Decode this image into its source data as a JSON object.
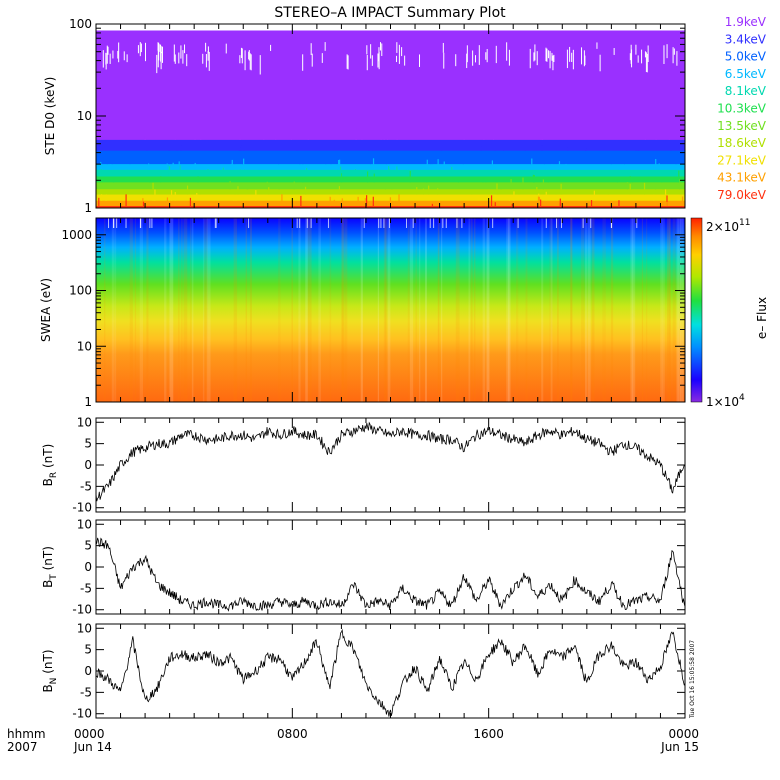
{
  "title": "STEREO–A IMPACT Summary Plot",
  "colors": {
    "axis": "#000000",
    "trace": "#000000",
    "ste_1_9": "#9a30ff",
    "ste_3_4": "#3030ff",
    "ste_5_0": "#0060ff",
    "ste_6_5": "#00b8ff",
    "ste_8_1": "#00d8b0",
    "ste_10_3": "#20e050",
    "ste_13_5": "#70e020",
    "ste_18_6": "#b0e000",
    "ste_27_1": "#f0e000",
    "ste_43_1": "#ffa000",
    "ste_79_0": "#ff3010"
  },
  "chart_data": [
    {
      "type": "line",
      "panel": "ste",
      "ylabel": "STE D0 (keV)",
      "yscale": "log",
      "ylim": [
        1,
        100
      ],
      "yticks": [
        "1",
        "10",
        "100"
      ],
      "legend_placement": "right",
      "series": [
        {
          "name": "1.9keV",
          "color": "#9a30ff",
          "level": 85
        },
        {
          "name": "3.4keV",
          "color": "#3030ff",
          "level": 5.5
        },
        {
          "name": "5.0keV",
          "color": "#0060ff",
          "level": 4.2
        },
        {
          "name": "6.5keV",
          "color": "#00b8ff",
          "level": 3.0
        },
        {
          "name": "8.1keV",
          "color": "#00d8b0",
          "level": 2.6
        },
        {
          "name": "10.3keV",
          "color": "#20e050",
          "level": 2.2
        },
        {
          "name": "13.5keV",
          "color": "#70e020",
          "level": 1.9
        },
        {
          "name": "18.6keV",
          "color": "#b0e000",
          "level": 1.6
        },
        {
          "name": "27.1keV",
          "color": "#f0e000",
          "level": 1.4
        },
        {
          "name": "43.1keV",
          "color": "#ffa000",
          "level": 1.2
        },
        {
          "name": "79.0keV",
          "color": "#ff3010",
          "level": 1.05
        }
      ]
    },
    {
      "type": "heatmap",
      "panel": "swea",
      "ylabel": "SWEA (eV)",
      "yscale": "log",
      "ylim": [
        1,
        2000
      ],
      "yticks": [
        "1",
        "10",
        "100",
        "1000"
      ],
      "colorbar": {
        "label": "e– Flux",
        "max_label": "2×10",
        "max_exp": "11",
        "min_label": "1×10",
        "min_exp": "4"
      }
    },
    {
      "type": "line",
      "panel": "br",
      "ylabel": "B",
      "ylabel_sub": "R",
      "ylabel_unit": " (nT)",
      "ylim": [
        -11,
        11
      ],
      "yticks": [
        "10",
        "5",
        "0",
        "-5",
        "-10"
      ],
      "x": [
        0,
        0.5,
        1,
        1.5,
        2,
        2.5,
        3,
        3.5,
        4,
        4.5,
        5,
        5.5,
        6,
        6.5,
        7,
        7.5,
        8,
        8.5,
        9,
        9.5,
        10,
        10.5,
        11,
        11.5,
        12,
        12.5,
        13,
        13.5,
        14,
        14.5,
        15,
        15.5,
        16,
        16.5,
        17,
        17.5,
        18,
        18.5,
        19,
        19.5,
        20,
        20.5,
        21,
        21.5,
        22,
        22.5,
        23,
        23.5,
        24
      ],
      "values": [
        -8,
        -5,
        0,
        3,
        4,
        5,
        5,
        7,
        7,
        6,
        6,
        7,
        7,
        6,
        8,
        7,
        8,
        7,
        7,
        3,
        7,
        8,
        9,
        8,
        7,
        8,
        7,
        7,
        6,
        6,
        4,
        7,
        8,
        7,
        6,
        5,
        7,
        8,
        7,
        8,
        6,
        5,
        3,
        5,
        4,
        2,
        0,
        -6,
        1
      ]
    },
    {
      "type": "line",
      "panel": "bt",
      "ylabel": "B",
      "ylabel_sub": "T",
      "ylabel_unit": " (nT)",
      "ylim": [
        -11,
        11
      ],
      "yticks": [
        "10",
        "5",
        "0",
        "-5",
        "-10"
      ],
      "x": [
        0,
        0.5,
        1,
        1.5,
        2,
        2.5,
        3,
        3.5,
        4,
        4.5,
        5,
        5.5,
        6,
        6.5,
        7,
        7.5,
        8,
        8.5,
        9,
        9.5,
        10,
        10.5,
        11,
        11.5,
        12,
        12.5,
        13,
        13.5,
        14,
        14.5,
        15,
        15.5,
        16,
        16.5,
        17,
        17.5,
        18,
        18.5,
        19,
        19.5,
        20,
        20.5,
        21,
        21.5,
        22,
        22.5,
        23,
        23.5,
        24
      ],
      "values": [
        6,
        5,
        -5,
        0,
        2,
        -4,
        -6,
        -8,
        -9,
        -8,
        -9,
        -9,
        -8,
        -9,
        -9,
        -8,
        -9,
        -8,
        -9,
        -8,
        -9,
        -4,
        -9,
        -8,
        -9,
        -5,
        -8,
        -9,
        -6,
        -9,
        -2,
        -8,
        -3,
        -9,
        -5,
        -2,
        -7,
        -4,
        -8,
        -3,
        -6,
        -8,
        -4,
        -9,
        -8,
        -7,
        -8,
        4,
        -10
      ]
    },
    {
      "type": "line",
      "panel": "bn",
      "ylabel": "B",
      "ylabel_sub": "N",
      "ylabel_unit": " (nT)",
      "ylim": [
        -11,
        11
      ],
      "yticks": [
        "10",
        "5",
        "0",
        "-5",
        "-10"
      ],
      "x": [
        0,
        0.5,
        1,
        1.5,
        2,
        2.5,
        3,
        3.5,
        4,
        4.5,
        5,
        5.5,
        6,
        6.5,
        7,
        7.5,
        8,
        8.5,
        9,
        9.5,
        10,
        10.5,
        11,
        11.5,
        12,
        12.5,
        13,
        13.5,
        14,
        14.5,
        15,
        15.5,
        16,
        16.5,
        17,
        17.5,
        18,
        18.5,
        19,
        19.5,
        20,
        20.5,
        21,
        21.5,
        22,
        22.5,
        23,
        23.5,
        24
      ],
      "values": [
        0,
        -2,
        -5,
        7,
        -7,
        -4,
        3,
        4,
        3,
        4,
        2,
        3,
        -2,
        0,
        3,
        3,
        -2,
        2,
        7,
        -4,
        9,
        5,
        -3,
        -7,
        -10,
        -3,
        1,
        -5,
        3,
        -4,
        2,
        -2,
        4,
        7,
        2,
        6,
        -1,
        5,
        3,
        6,
        -3,
        4,
        6,
        1,
        2,
        -2,
        1,
        9,
        -3
      ]
    }
  ],
  "xaxis": {
    "prefix_top": "hhmm",
    "prefix_bottom": "2007",
    "ticks": [
      {
        "hours": 0,
        "label": "0000",
        "date": "Jun 14"
      },
      {
        "hours": 8,
        "label": "0800",
        "date": ""
      },
      {
        "hours": 16,
        "label": "1600",
        "date": ""
      },
      {
        "hours": 24,
        "label": "0000",
        "date": "Jun 15"
      }
    ]
  },
  "timestamp": "Tue Oct 16 15:05:58 2007"
}
